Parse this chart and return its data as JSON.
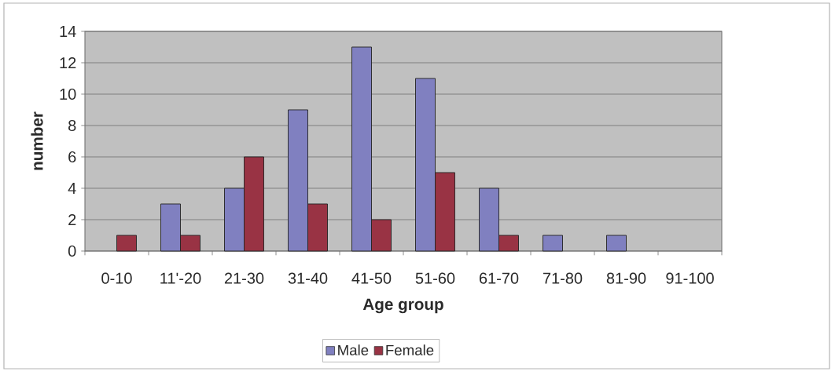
{
  "chart_data": {
    "type": "bar",
    "xlabel": "Age group",
    "ylabel": "number",
    "categories": [
      "0-10",
      "11'-20",
      "21-30",
      "31-40",
      "41-50",
      "51-60",
      "61-70",
      "71-80",
      "81-90",
      "91-100"
    ],
    "series": [
      {
        "name": "Male",
        "color": "#8080c0",
        "values": [
          null,
          3,
          4,
          9,
          13,
          11,
          4,
          1,
          1,
          null
        ]
      },
      {
        "name": "Female",
        "color": "#993344",
        "values": [
          1,
          1,
          6,
          3,
          2,
          5,
          1,
          null,
          null,
          null
        ]
      }
    ],
    "ylim": [
      0,
      14
    ],
    "yticks": [
      0,
      2,
      4,
      6,
      8,
      10,
      12,
      14
    ],
    "grid": "y",
    "legend": "bottom"
  }
}
